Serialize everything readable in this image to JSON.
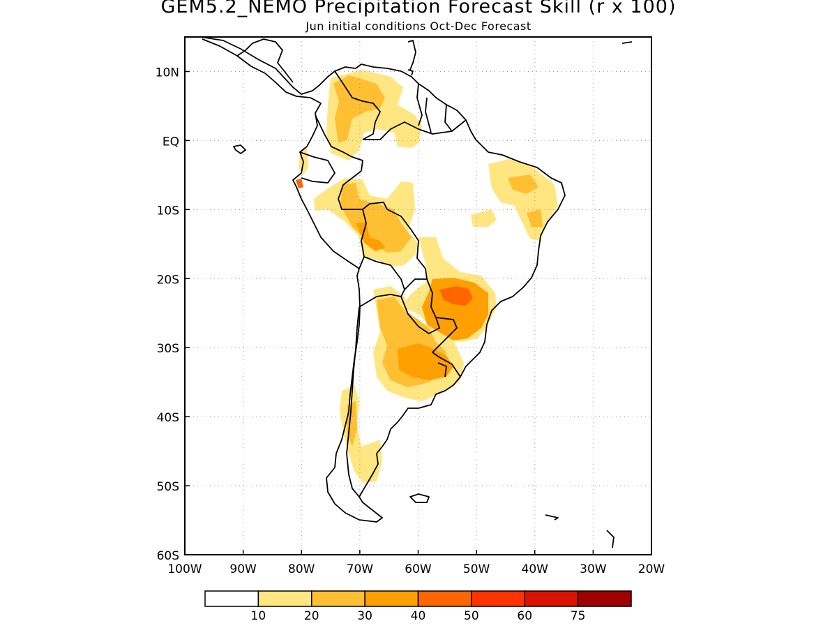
{
  "title": "GEM5.2_NEMO Precipitation Forecast Skill (r x 100)",
  "subtitle": "Jun initial conditions  Oct-Dec Forecast",
  "map": {
    "lon_range": [
      -100,
      -20
    ],
    "lat_range": [
      -60,
      15
    ],
    "lat_ticks": [
      {
        "lat": 10,
        "label": "10N"
      },
      {
        "lat": 0,
        "label": "EQ"
      },
      {
        "lat": -10,
        "label": "10S"
      },
      {
        "lat": -20,
        "label": "20S"
      },
      {
        "lat": -30,
        "label": "30S"
      },
      {
        "lat": -40,
        "label": "40S"
      },
      {
        "lat": -50,
        "label": "50S"
      },
      {
        "lat": -60,
        "label": "60S"
      }
    ],
    "lon_ticks": [
      {
        "lon": -100,
        "label": "100W"
      },
      {
        "lon": -90,
        "label": "90W"
      },
      {
        "lon": -80,
        "label": "80W"
      },
      {
        "lon": -70,
        "label": "70W"
      },
      {
        "lon": -60,
        "label": "60W"
      },
      {
        "lon": -50,
        "label": "50W"
      },
      {
        "lon": -40,
        "label": "40W"
      },
      {
        "lon": -30,
        "label": "30W"
      },
      {
        "lon": -20,
        "label": "20W"
      }
    ],
    "grid": true
  },
  "colorbar": {
    "colors": [
      "#ffffff",
      "#ffe680",
      "#ffbf33",
      "#ff9f00",
      "#ff6600",
      "#ff3300",
      "#dd1100",
      "#a00000"
    ],
    "labels": [
      "10",
      "20",
      "30",
      "40",
      "50",
      "60",
      "75"
    ]
  }
}
